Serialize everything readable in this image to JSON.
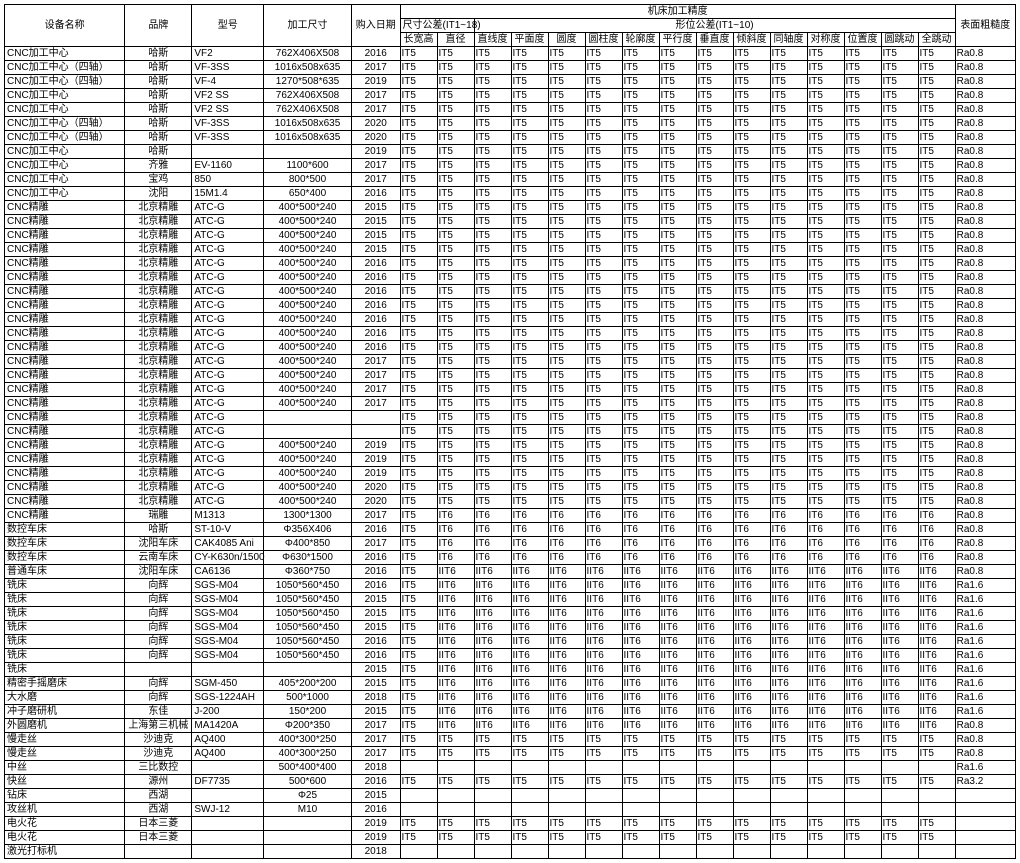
{
  "header": {
    "name": "设备名称",
    "brand": "品牌",
    "model": "型号",
    "size": "加工尺寸",
    "date": "购入日期",
    "precision_group": "机床加工精度",
    "dim_group": "尺寸公差(IT1~18)",
    "geo_group": "形位公差(IT1~10)",
    "rough": "表面粗糙度",
    "dim_w": "长宽高",
    "dim_d": "直径",
    "geo1": "直线度",
    "geo2": "平面度",
    "geo3": "圆度",
    "geo4": "圆柱度",
    "geo5": "轮廓度",
    "geo6": "平行度",
    "geo7": "垂直度",
    "geo8": "倾斜度",
    "geo9": "同轴度",
    "geo10": "对称度",
    "geo11": "位置度",
    "geo12": "圆跳动",
    "geo13": "全跳动"
  },
  "rows": [
    [
      "CNC加工中心",
      "哈斯",
      "VF2",
      "762X406X508",
      "2016",
      "IT5",
      "IT5",
      "IT5",
      "IT5",
      "IT5",
      "IT5",
      "IT5",
      "IT5",
      "IT5",
      "IT5",
      "IT5",
      "IT5",
      "IT5",
      "IT5",
      "IT5",
      "Ra0.8"
    ],
    [
      "CNC加工中心（四轴）",
      "哈斯",
      "VF-3SS",
      "1016x508x635",
      "2017",
      "IT5",
      "IT5",
      "IT5",
      "IT5",
      "IT5",
      "IT5",
      "IT5",
      "IT5",
      "IT5",
      "IT5",
      "IT5",
      "IT5",
      "IT5",
      "IT5",
      "IT5",
      "Ra0.8"
    ],
    [
      "CNC加工中心（四轴）",
      "哈斯",
      "VF-4",
      "1270*508*635",
      "2019",
      "IT5",
      "IT5",
      "IT5",
      "IT5",
      "IT5",
      "IT5",
      "IT5",
      "IT5",
      "IT5",
      "IT5",
      "IT5",
      "IT5",
      "IT5",
      "IT5",
      "IT5",
      "Ra0.8"
    ],
    [
      "CNC加工中心",
      "哈斯",
      "VF2 SS",
      "762X406X508",
      "2017",
      "IT5",
      "IT5",
      "IT5",
      "IT5",
      "IT5",
      "IT5",
      "IT5",
      "IT5",
      "IT5",
      "IT5",
      "IT5",
      "IT5",
      "IT5",
      "IT5",
      "IT5",
      "Ra0.8"
    ],
    [
      "CNC加工中心",
      "哈斯",
      "VF2 SS",
      "762X406X508",
      "2017",
      "IT5",
      "IT5",
      "IT5",
      "IT5",
      "IT5",
      "IT5",
      "IT5",
      "IT5",
      "IT5",
      "IT5",
      "IT5",
      "IT5",
      "IT5",
      "IT5",
      "IT5",
      "Ra0.8"
    ],
    [
      "CNC加工中心（四轴）",
      "哈斯",
      "VF-3SS",
      "1016x508x635",
      "2020",
      "IT5",
      "IT5",
      "IT5",
      "IT5",
      "IT5",
      "IT5",
      "IT5",
      "IT5",
      "IT5",
      "IT5",
      "IT5",
      "IT5",
      "IT5",
      "IT5",
      "IT5",
      "Ra0.8"
    ],
    [
      "CNC加工中心（四轴）",
      "哈斯",
      "VF-3SS",
      "1016x508x635",
      "2020",
      "IT5",
      "IT5",
      "IT5",
      "IT5",
      "IT5",
      "IT5",
      "IT5",
      "IT5",
      "IT5",
      "IT5",
      "IT5",
      "IT5",
      "IT5",
      "IT5",
      "IT5",
      "Ra0.8"
    ],
    [
      "CNC加工中心",
      "哈斯",
      "",
      "",
      "2019",
      "IT5",
      "IT5",
      "IT5",
      "IT5",
      "IT5",
      "IT5",
      "IT5",
      "IT5",
      "IT5",
      "IT5",
      "IT5",
      "IT5",
      "IT5",
      "IT5",
      "IT5",
      "Ra0.8"
    ],
    [
      "CNC加工中心",
      "齐雅",
      "EV-1160",
      "1100*600",
      "2017",
      "IT5",
      "IT5",
      "IT5",
      "IT5",
      "IT5",
      "IT5",
      "IT5",
      "IT5",
      "IT5",
      "IT5",
      "IT5",
      "IT5",
      "IT5",
      "IT5",
      "IT5",
      "Ra0.8"
    ],
    [
      "CNC加工中心",
      "宝鸡",
      "850",
      "800*500",
      "2017",
      "IT5",
      "IT5",
      "IT5",
      "IT5",
      "IT5",
      "IT5",
      "IT5",
      "IT5",
      "IT5",
      "IT5",
      "IT5",
      "IT5",
      "IT5",
      "IT5",
      "IT5",
      "Ra0.8"
    ],
    [
      "CNC加工中心",
      "沈阳",
      "15M1.4",
      "650*400",
      "2016",
      "IT5",
      "IT5",
      "IT5",
      "IT5",
      "IT5",
      "IT5",
      "IT5",
      "IT5",
      "IT5",
      "IT5",
      "IT5",
      "IT5",
      "IT5",
      "IT5",
      "IT5",
      "Ra0.8"
    ],
    [
      "CNC精雕",
      "北京精雕",
      "ATC-G",
      "400*500*240",
      "2015",
      "IT5",
      "IT5",
      "IT5",
      "IT5",
      "IT5",
      "IT5",
      "IT5",
      "IT5",
      "IT5",
      "IT5",
      "IT5",
      "IT5",
      "IT5",
      "IT5",
      "IT5",
      "Ra0.8"
    ],
    [
      "CNC精雕",
      "北京精雕",
      "ATC-G",
      "400*500*240",
      "2015",
      "IT5",
      "IT5",
      "IT5",
      "IT5",
      "IT5",
      "IT5",
      "IT5",
      "IT5",
      "IT5",
      "IT5",
      "IT5",
      "IT5",
      "IT5",
      "IT5",
      "IT5",
      "Ra0.8"
    ],
    [
      "CNC精雕",
      "北京精雕",
      "ATC-G",
      "400*500*240",
      "2015",
      "IT5",
      "IT5",
      "IT5",
      "IT5",
      "IT5",
      "IT5",
      "IT5",
      "IT5",
      "IT5",
      "IT5",
      "IT5",
      "IT5",
      "IT5",
      "IT5",
      "IT5",
      "Ra0.8"
    ],
    [
      "CNC精雕",
      "北京精雕",
      "ATC-G",
      "400*500*240",
      "2015",
      "IT5",
      "IT5",
      "IT5",
      "IT5",
      "IT5",
      "IT5",
      "IT5",
      "IT5",
      "IT5",
      "IT5",
      "IT5",
      "IT5",
      "IT5",
      "IT5",
      "IT5",
      "Ra0.8"
    ],
    [
      "CNC精雕",
      "北京精雕",
      "ATC-G",
      "400*500*240",
      "2016",
      "IT5",
      "IT5",
      "IT5",
      "IT5",
      "IT5",
      "IT5",
      "IT5",
      "IT5",
      "IT5",
      "IT5",
      "IT5",
      "IT5",
      "IT5",
      "IT5",
      "IT5",
      "Ra0.8"
    ],
    [
      "CNC精雕",
      "北京精雕",
      "ATC-G",
      "400*500*240",
      "2016",
      "IT5",
      "IT5",
      "IT5",
      "IT5",
      "IT5",
      "IT5",
      "IT5",
      "IT5",
      "IT5",
      "IT5",
      "IT5",
      "IT5",
      "IT5",
      "IT5",
      "IT5",
      "Ra0.8"
    ],
    [
      "CNC精雕",
      "北京精雕",
      "ATC-G",
      "400*500*240",
      "2016",
      "IT5",
      "IT5",
      "IT5",
      "IT5",
      "IT5",
      "IT5",
      "IT5",
      "IT5",
      "IT5",
      "IT5",
      "IT5",
      "IT5",
      "IT5",
      "IT5",
      "IT5",
      "Ra0.8"
    ],
    [
      "CNC精雕",
      "北京精雕",
      "ATC-G",
      "400*500*240",
      "2016",
      "IT5",
      "IT5",
      "IT5",
      "IT5",
      "IT5",
      "IT5",
      "IT5",
      "IT5",
      "IT5",
      "IT5",
      "IT5",
      "IT5",
      "IT5",
      "IT5",
      "IT5",
      "Ra0.8"
    ],
    [
      "CNC精雕",
      "北京精雕",
      "ATC-G",
      "400*500*240",
      "2016",
      "IT5",
      "IT5",
      "IT5",
      "IT5",
      "IT5",
      "IT5",
      "IT5",
      "IT5",
      "IT5",
      "IT5",
      "IT5",
      "IT5",
      "IT5",
      "IT5",
      "IT5",
      "Ra0.8"
    ],
    [
      "CNC精雕",
      "北京精雕",
      "ATC-G",
      "400*500*240",
      "2016",
      "IT5",
      "IT5",
      "IT5",
      "IT5",
      "IT5",
      "IT5",
      "IT5",
      "IT5",
      "IT5",
      "IT5",
      "IT5",
      "IT5",
      "IT5",
      "IT5",
      "IT5",
      "Ra0.8"
    ],
    [
      "CNC精雕",
      "北京精雕",
      "ATC-G",
      "400*500*240",
      "2016",
      "IT5",
      "IT5",
      "IT5",
      "IT5",
      "IT5",
      "IT5",
      "IT5",
      "IT5",
      "IT5",
      "IT5",
      "IT5",
      "IT5",
      "IT5",
      "IT5",
      "IT5",
      "Ra0.8"
    ],
    [
      "CNC精雕",
      "北京精雕",
      "ATC-G",
      "400*500*240",
      "2017",
      "IT5",
      "IT5",
      "IT5",
      "IT5",
      "IT5",
      "IT5",
      "IT5",
      "IT5",
      "IT5",
      "IT5",
      "IT5",
      "IT5",
      "IT5",
      "IT5",
      "IT5",
      "Ra0.8"
    ],
    [
      "CNC精雕",
      "北京精雕",
      "ATC-G",
      "400*500*240",
      "2017",
      "IT5",
      "IT5",
      "IT5",
      "IT5",
      "IT5",
      "IT5",
      "IT5",
      "IT5",
      "IT5",
      "IT5",
      "IT5",
      "IT5",
      "IT5",
      "IT5",
      "IT5",
      "Ra0.8"
    ],
    [
      "CNC精雕",
      "北京精雕",
      "ATC-G",
      "400*500*240",
      "2017",
      "IT5",
      "IT5",
      "IT5",
      "IT5",
      "IT5",
      "IT5",
      "IT5",
      "IT5",
      "IT5",
      "IT5",
      "IT5",
      "IT5",
      "IT5",
      "IT5",
      "IT5",
      "Ra0.8"
    ],
    [
      "CNC精雕",
      "北京精雕",
      "ATC-G",
      "400*500*240",
      "2017",
      "IT5",
      "IT5",
      "IT5",
      "IT5",
      "IT5",
      "IT5",
      "IT5",
      "IT5",
      "IT5",
      "IT5",
      "IT5",
      "IT5",
      "IT5",
      "IT5",
      "IT5",
      "Ra0.8"
    ],
    [
      "CNC精雕",
      "北京精雕",
      "ATC-G",
      "",
      "",
      "IT5",
      "IT5",
      "IT5",
      "IT5",
      "IT5",
      "IT5",
      "IT5",
      "IT5",
      "IT5",
      "IT5",
      "IT5",
      "IT5",
      "IT5",
      "IT5",
      "IT5",
      "Ra0.8"
    ],
    [
      "CNC精雕",
      "北京精雕",
      "ATC-G",
      "",
      "",
      "IT5",
      "IT5",
      "IT5",
      "IT5",
      "IT5",
      "IT5",
      "IT5",
      "IT5",
      "IT5",
      "IT5",
      "IT5",
      "IT5",
      "IT5",
      "IT5",
      "IT5",
      "Ra0.8"
    ],
    [
      "CNC精雕",
      "北京精雕",
      "ATC-G",
      "400*500*240",
      "2019",
      "IT5",
      "IT5",
      "IT5",
      "IT5",
      "IT5",
      "IT5",
      "IT5",
      "IT5",
      "IT5",
      "IT5",
      "IT5",
      "IT5",
      "IT5",
      "IT5",
      "IT5",
      "Ra0.8"
    ],
    [
      "CNC精雕",
      "北京精雕",
      "ATC-G",
      "400*500*240",
      "2019",
      "IT5",
      "IT5",
      "IT5",
      "IT5",
      "IT5",
      "IT5",
      "IT5",
      "IT5",
      "IT5",
      "IT5",
      "IT5",
      "IT5",
      "IT5",
      "IT5",
      "IT5",
      "Ra0.8"
    ],
    [
      "CNC精雕",
      "北京精雕",
      "ATC-G",
      "400*500*240",
      "2019",
      "IT5",
      "IT5",
      "IT5",
      "IT5",
      "IT5",
      "IT5",
      "IT5",
      "IT5",
      "IT5",
      "IT5",
      "IT5",
      "IT5",
      "IT5",
      "IT5",
      "IT5",
      "Ra0.8"
    ],
    [
      "CNC精雕",
      "北京精雕",
      "ATC-G",
      "400*500*240",
      "2020",
      "IT5",
      "IT5",
      "IT5",
      "IT5",
      "IT5",
      "IT5",
      "IT5",
      "IT5",
      "IT5",
      "IT5",
      "IT5",
      "IT5",
      "IT5",
      "IT5",
      "IT5",
      "Ra0.8"
    ],
    [
      "CNC精雕",
      "北京精雕",
      "ATC-G",
      "400*500*240",
      "2020",
      "IT5",
      "IT5",
      "IT5",
      "IT5",
      "IT5",
      "IT5",
      "IT5",
      "IT5",
      "IT5",
      "IT5",
      "IT5",
      "IT5",
      "IT5",
      "IT5",
      "IT5",
      "Ra0.8"
    ],
    [
      "CNC精雕",
      "瑞雕",
      "M1313",
      "1300*1300",
      "2017",
      "IT5",
      "IT6",
      "IT6",
      "IT6",
      "IT6",
      "IT6",
      "IT6",
      "IT6",
      "IT6",
      "IT6",
      "IT6",
      "IT6",
      "IT6",
      "IT6",
      "IT6",
      "Ra0.8"
    ],
    [
      "数控车床",
      "哈斯",
      "ST-10-V",
      "Φ356X406",
      "2016",
      "IT5",
      "IT6",
      "IT6",
      "IT6",
      "IT6",
      "IT6",
      "IT6",
      "IT6",
      "IT6",
      "IT6",
      "IT6",
      "IT6",
      "IT6",
      "IT6",
      "IT6",
      "Ra0.8"
    ],
    [
      "数控车床",
      "沈阳车床",
      "CAK4085 Ani",
      "Φ400*850",
      "2017",
      "IT5",
      "IT6",
      "IT6",
      "IT6",
      "IT6",
      "IT6",
      "IT6",
      "IT6",
      "IT6",
      "IT6",
      "IT6",
      "IT6",
      "IT6",
      "IT6",
      "IT6",
      "Ra0.8"
    ],
    [
      "数控车床",
      "云南车床",
      "CY-K630n/1500",
      "Φ630*1500",
      "2016",
      "IT5",
      "IT6",
      "IT6",
      "IT6",
      "IT6",
      "IT6",
      "IT6",
      "IT6",
      "IT6",
      "IT6",
      "IT6",
      "IT6",
      "IT6",
      "IT6",
      "IT6",
      "Ra0.8"
    ],
    [
      "普通车床",
      "沈阳车床",
      "CA6136",
      "Φ360*750",
      "2016",
      "IT5",
      "IIT6",
      "IIT6",
      "IIT6",
      "IIT6",
      "IIT6",
      "IIT6",
      "IIT6",
      "IIT6",
      "IIT6",
      "IIT6",
      "IIT6",
      "IIT6",
      "IIT6",
      "IIT6",
      "Ra0.8"
    ],
    [
      "铣床",
      "向辉",
      "SGS-M04",
      "1050*560*450",
      "2016",
      "IT5",
      "IIT6",
      "IIT6",
      "IIT6",
      "IIT6",
      "IIT6",
      "IIT6",
      "IIT6",
      "IIT6",
      "IIT6",
      "IIT6",
      "IIT6",
      "IIT6",
      "IIT6",
      "IIT6",
      "Ra1.6"
    ],
    [
      "铣床",
      "向辉",
      "SGS-M04",
      "1050*560*450",
      "2015",
      "IT5",
      "IIT6",
      "IIT6",
      "IIT6",
      "IIT6",
      "IIT6",
      "IIT6",
      "IIT6",
      "IIT6",
      "IIT6",
      "IIT6",
      "IIT6",
      "IIT6",
      "IIT6",
      "IIT6",
      "Ra1.6"
    ],
    [
      "铣床",
      "向辉",
      "SGS-M04",
      "1050*560*450",
      "2015",
      "IT5",
      "IIT6",
      "IIT6",
      "IIT6",
      "IIT6",
      "IIT6",
      "IIT6",
      "IIT6",
      "IIT6",
      "IIT6",
      "IIT6",
      "IIT6",
      "IIT6",
      "IIT6",
      "IIT6",
      "Ra1.6"
    ],
    [
      "铣床",
      "向辉",
      "SGS-M04",
      "1050*560*450",
      "2015",
      "IT5",
      "IIT6",
      "IIT6",
      "IIT6",
      "IIT6",
      "IIT6",
      "IIT6",
      "IIT6",
      "IIT6",
      "IIT6",
      "IIT6",
      "IIT6",
      "IIT6",
      "IIT6",
      "IIT6",
      "Ra1.6"
    ],
    [
      "铣床",
      "向辉",
      "SGS-M04",
      "1050*560*450",
      "2016",
      "IT5",
      "IIT6",
      "IIT6",
      "IIT6",
      "IIT6",
      "IIT6",
      "IIT6",
      "IIT6",
      "IIT6",
      "IIT6",
      "IIT6",
      "IIT6",
      "IIT6",
      "IIT6",
      "IIT6",
      "Ra1.6"
    ],
    [
      "铣床",
      "向辉",
      "SGS-M04",
      "1050*560*450",
      "2016",
      "IT5",
      "IIT6",
      "IIT6",
      "IIT6",
      "IIT6",
      "IIT6",
      "IIT6",
      "IIT6",
      "IIT6",
      "IIT6",
      "IIT6",
      "IIT6",
      "IIT6",
      "IIT6",
      "IIT6",
      "Ra1.6"
    ],
    [
      "铣床",
      "",
      "",
      "",
      "2015",
      "IT5",
      "IIT6",
      "IIT6",
      "IIT6",
      "IIT6",
      "IIT6",
      "IIT6",
      "IIT6",
      "IIT6",
      "IIT6",
      "IIT6",
      "IIT6",
      "IIT6",
      "IIT6",
      "IIT6",
      "Ra1.6"
    ],
    [
      "精密手摇磨床",
      "向辉",
      "SGM-450",
      "405*200*200",
      "2015",
      "IT5",
      "IIT6",
      "IIT6",
      "IIT6",
      "IIT6",
      "IIT6",
      "IIT6",
      "IIT6",
      "IIT6",
      "IIT6",
      "IIT6",
      "IIT6",
      "IIT6",
      "IIT6",
      "IIT6",
      "Ra1.6"
    ],
    [
      "大水磨",
      "向辉",
      "SGS-1224AH",
      "500*1000",
      "2018",
      "IT5",
      "IIT6",
      "IIT6",
      "IIT6",
      "IIT6",
      "IIT6",
      "IIT6",
      "IIT6",
      "IIT6",
      "IIT6",
      "IIT6",
      "IIT6",
      "IIT6",
      "IIT6",
      "IIT6",
      "Ra1.6"
    ],
    [
      "冲子磨研机",
      "东佳",
      "J-200",
      "150*200",
      "2015",
      "IT5",
      "IIT6",
      "IIT6",
      "IIT6",
      "IIT6",
      "IIT6",
      "IIT6",
      "IIT6",
      "IIT6",
      "IIT6",
      "IIT6",
      "IIT6",
      "IIT6",
      "IIT6",
      "IIT6",
      "Ra1.6"
    ],
    [
      "外圆磨机",
      "上海第三机械",
      "MA1420A",
      "Φ200*350",
      "2017",
      "IT5",
      "IIT6",
      "IIT6",
      "IIT6",
      "IIT6",
      "IIT6",
      "IIT6",
      "IIT6",
      "IIT6",
      "IIT6",
      "IIT6",
      "IIT6",
      "IIT6",
      "IIT6",
      "IIT6",
      "Ra0.8"
    ],
    [
      "慢走丝",
      "沙迪克",
      "AQ400",
      "400*300*250",
      "2017",
      "IT5",
      "IT5",
      "IT5",
      "IT5",
      "IT5",
      "IT5",
      "IT5",
      "IT5",
      "IT5",
      "IT5",
      "IT5",
      "IT5",
      "IT5",
      "IT5",
      "IT5",
      "Ra0.8"
    ],
    [
      "慢走丝",
      "沙迪克",
      "AQ400",
      "400*300*250",
      "2017",
      "IT5",
      "IT5",
      "IT5",
      "IT5",
      "IT5",
      "IT5",
      "IT5",
      "IT5",
      "IT5",
      "IT5",
      "IT5",
      "IT5",
      "IT5",
      "IT5",
      "IT5",
      "Ra0.8"
    ],
    [
      "中丝",
      "三比数控",
      "",
      "500*400*400",
      "2018",
      "",
      "",
      "",
      "",
      "",
      "",
      "",
      "",
      "",
      "",
      "",
      "",
      "",
      "",
      "",
      "Ra1.6"
    ],
    [
      "快丝",
      "源州",
      "DF7735",
      "500*600",
      "2016",
      "IT5",
      "IT5",
      "IT5",
      "IT5",
      "IT5",
      "IT5",
      "IT5",
      "IT5",
      "IT5",
      "IT5",
      "IT5",
      "IT5",
      "IT5",
      "IT5",
      "IT5",
      "Ra3.2"
    ],
    [
      "钻床",
      "西湖",
      "",
      "Φ25",
      "2015",
      "",
      "",
      "",
      "",
      "",
      "",
      "",
      "",
      "",
      "",
      "",
      "",
      "",
      "",
      "",
      ""
    ],
    [
      "攻丝机",
      "西湖",
      "SWJ-12",
      "M10",
      "2016",
      "",
      "",
      "",
      "",
      "",
      "",
      "",
      "",
      "",
      "",
      "",
      "",
      "",
      "",
      "",
      ""
    ],
    [
      "电火花",
      "日本三菱",
      "",
      "",
      "2019",
      "IT5",
      "IT5",
      "IT5",
      "IT5",
      "IT5",
      "IT5",
      "IT5",
      "IT5",
      "IT5",
      "IT5",
      "IT5",
      "IT5",
      "IT5",
      "IT5",
      "IT5",
      ""
    ],
    [
      "电火花",
      "日本三菱",
      "",
      "",
      "2019",
      "IT5",
      "IT5",
      "IT5",
      "IT5",
      "IT5",
      "IT5",
      "IT5",
      "IT5",
      "IT5",
      "IT5",
      "IT5",
      "IT5",
      "IT5",
      "IT5",
      "IT5",
      ""
    ],
    [
      "激光打标机",
      "",
      "",
      "",
      "2018",
      "",
      "",
      "",
      "",
      "",
      "",
      "",
      "",
      "",
      "",
      "",
      "",
      "",
      "",
      "",
      ""
    ]
  ]
}
